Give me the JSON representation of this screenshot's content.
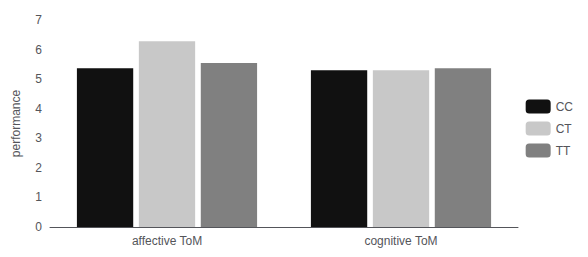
{
  "chart_data": {
    "type": "bar",
    "categories": [
      "affective ToM",
      "cognitive ToM"
    ],
    "series": [
      {
        "name": "CC",
        "color": "#111111",
        "values": [
          5.37,
          5.3
        ]
      },
      {
        "name": "CT",
        "color": "#c8c8c8",
        "values": [
          6.28,
          5.3
        ]
      },
      {
        "name": "TT",
        "color": "#808080",
        "values": [
          5.55,
          5.37
        ]
      }
    ],
    "ylabel": "performance",
    "ylim": [
      0,
      7
    ],
    "yticks": [
      0,
      1,
      2,
      3,
      4,
      5,
      6,
      7
    ],
    "grid": false,
    "legend": "right"
  }
}
